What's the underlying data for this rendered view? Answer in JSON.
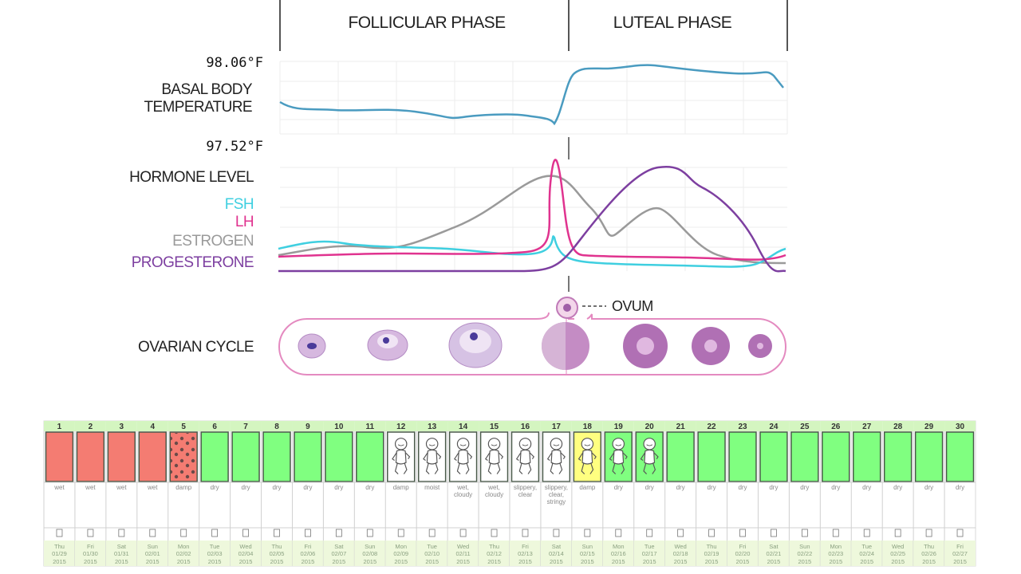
{
  "diagram": {
    "phases": [
      "FOLLICULAR PHASE",
      "LUTEAL PHASE"
    ],
    "temperature": {
      "label": [
        "BASAL BODY",
        "TEMPERATURE"
      ],
      "high": "98.06°F",
      "low": "97.52°F"
    },
    "hormones": {
      "label": "HORMONE LEVEL",
      "legend": [
        {
          "name": "FSH",
          "color": "#3fcfe0"
        },
        {
          "name": "LH",
          "color": "#e0338f"
        },
        {
          "name": "ESTROGEN",
          "color": "#9a9a9a"
        },
        {
          "name": "PROGESTERONE",
          "color": "#7d3fa0"
        }
      ]
    },
    "ovum": "OVUM",
    "ovarian": "OVARIAN CYCLE"
  },
  "calendar": {
    "days": [
      {
        "day": 1,
        "note": [
          "wet"
        ],
        "weekday": "Thu",
        "date": "01/29",
        "year": "2015",
        "color": "#f47c72"
      },
      {
        "day": 2,
        "note": [
          "wet"
        ],
        "weekday": "Fri",
        "date": "01/30",
        "year": "2015",
        "color": "#f47c72"
      },
      {
        "day": 3,
        "note": [
          "wet"
        ],
        "weekday": "Sat",
        "date": "01/31",
        "year": "2015",
        "color": "#f47c72"
      },
      {
        "day": 4,
        "note": [
          "wet"
        ],
        "weekday": "Sun",
        "date": "02/01",
        "year": "2015",
        "color": "#f47c72"
      },
      {
        "day": 5,
        "note": [
          "damp"
        ],
        "weekday": "Mon",
        "date": "02/02",
        "year": "2015",
        "color": "#f47c72",
        "pattern": "dots"
      },
      {
        "day": 6,
        "note": [
          "dry"
        ],
        "weekday": "Tue",
        "date": "02/03",
        "year": "2015",
        "color": "#80ff80"
      },
      {
        "day": 7,
        "note": [
          "dry"
        ],
        "weekday": "Wed",
        "date": "02/04",
        "year": "2015",
        "color": "#80ff80"
      },
      {
        "day": 8,
        "note": [
          "dry"
        ],
        "weekday": "Thu",
        "date": "02/05",
        "year": "2015",
        "color": "#80ff80"
      },
      {
        "day": 9,
        "note": [
          "dry"
        ],
        "weekday": "Fri",
        "date": "02/06",
        "year": "2015",
        "color": "#80ff80"
      },
      {
        "day": 10,
        "note": [
          "dry"
        ],
        "weekday": "Sat",
        "date": "02/07",
        "year": "2015",
        "color": "#80ff80"
      },
      {
        "day": 11,
        "note": [
          "dry"
        ],
        "weekday": "Sun",
        "date": "02/08",
        "year": "2015",
        "color": "#80ff80"
      },
      {
        "day": 12,
        "note": [
          "damp"
        ],
        "weekday": "Mon",
        "date": "02/09",
        "year": "2015",
        "color": "#ffffff",
        "pattern": "baby"
      },
      {
        "day": 13,
        "note": [
          "moist"
        ],
        "weekday": "Tue",
        "date": "02/10",
        "year": "2015",
        "color": "#ffffff",
        "pattern": "baby"
      },
      {
        "day": 14,
        "note": [
          "wet,",
          "cloudy"
        ],
        "weekday": "Wed",
        "date": "02/11",
        "year": "2015",
        "color": "#ffffff",
        "pattern": "baby"
      },
      {
        "day": 15,
        "note": [
          "wet,",
          "cloudy"
        ],
        "weekday": "Thu",
        "date": "02/12",
        "year": "2015",
        "color": "#ffffff",
        "pattern": "baby"
      },
      {
        "day": 16,
        "note": [
          "slippery,",
          "clear"
        ],
        "weekday": "Fri",
        "date": "02/13",
        "year": "2015",
        "color": "#ffffff",
        "pattern": "baby"
      },
      {
        "day": 17,
        "note": [
          "slippery,",
          "clear,",
          "stringy"
        ],
        "weekday": "Sat",
        "date": "02/14",
        "year": "2015",
        "color": "#ffffff",
        "pattern": "baby"
      },
      {
        "day": 18,
        "note": [
          "damp"
        ],
        "weekday": "Sun",
        "date": "02/15",
        "year": "2015",
        "color": "#ffff80",
        "pattern": "baby"
      },
      {
        "day": 19,
        "note": [
          "dry"
        ],
        "weekday": "Mon",
        "date": "02/16",
        "year": "2015",
        "color": "#80ff80",
        "pattern": "baby"
      },
      {
        "day": 20,
        "note": [
          "dry"
        ],
        "weekday": "Tue",
        "date": "02/17",
        "year": "2015",
        "color": "#80ff80",
        "pattern": "baby"
      },
      {
        "day": 21,
        "note": [
          "dry"
        ],
        "weekday": "Wed",
        "date": "02/18",
        "year": "2015",
        "color": "#80ff80"
      },
      {
        "day": 22,
        "note": [
          "dry"
        ],
        "weekday": "Thu",
        "date": "02/19",
        "year": "2015",
        "color": "#80ff80"
      },
      {
        "day": 23,
        "note": [
          "dry"
        ],
        "weekday": "Fri",
        "date": "02/20",
        "year": "2015",
        "color": "#80ff80"
      },
      {
        "day": 24,
        "note": [
          "dry"
        ],
        "weekday": "Sat",
        "date": "02/21",
        "year": "2015",
        "color": "#80ff80"
      },
      {
        "day": 25,
        "note": [
          "dry"
        ],
        "weekday": "Sun",
        "date": "02/22",
        "year": "2015",
        "color": "#80ff80"
      },
      {
        "day": 26,
        "note": [
          "dry"
        ],
        "weekday": "Mon",
        "date": "02/23",
        "year": "2015",
        "color": "#80ff80"
      },
      {
        "day": 27,
        "note": [
          "dry"
        ],
        "weekday": "Tue",
        "date": "02/24",
        "year": "2015",
        "color": "#80ff80"
      },
      {
        "day": 28,
        "note": [
          "dry"
        ],
        "weekday": "Wed",
        "date": "02/25",
        "year": "2015",
        "color": "#80ff80"
      },
      {
        "day": 29,
        "note": [
          "dry"
        ],
        "weekday": "Thu",
        "date": "02/26",
        "year": "2015",
        "color": "#80ff80"
      },
      {
        "day": 30,
        "note": [
          "dry"
        ],
        "weekday": "Fri",
        "date": "02/27",
        "year": "2015",
        "color": "#80ff80"
      }
    ]
  }
}
